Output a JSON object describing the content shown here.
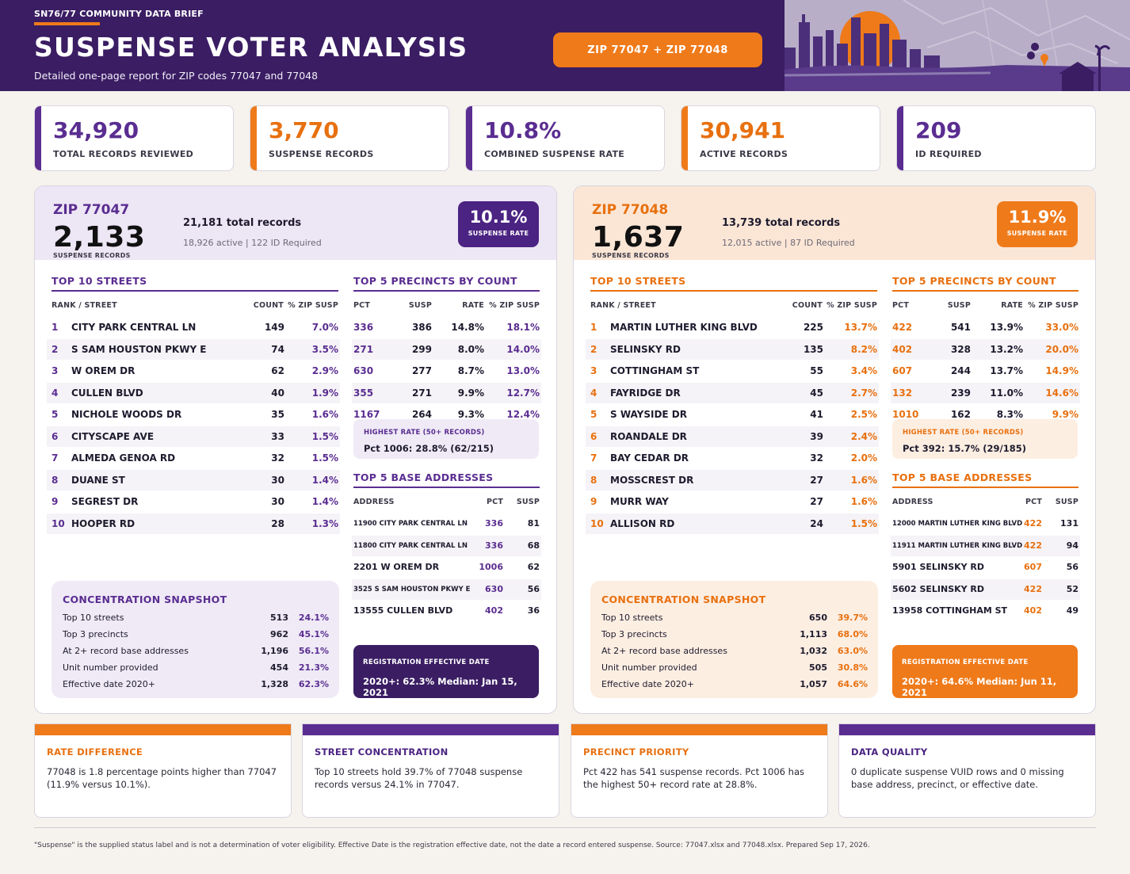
{
  "header": {
    "eyebrow": "SN76/77 COMMUNITY DATA BRIEF",
    "title": "SUSPENSE VOTER ANALYSIS",
    "subtitle": "Detailed one-page report for ZIP codes 77047 and 77048",
    "zip_pill": "ZIP 77047 + ZIP 77048",
    "illustration_icons": [
      "city-skyline-icon",
      "sun-icon",
      "map-pin-icon"
    ]
  },
  "colors": {
    "purple": "#3a1d63",
    "purple_accent": "#5a2d91",
    "orange": "#ef7a1a",
    "purple_tint": "#ede6f5",
    "orange_tint": "#fbe6d6"
  },
  "kpis": [
    {
      "value": "34,920",
      "label": "TOTAL RECORDS REVIEWED",
      "accent": "purple"
    },
    {
      "value": "3,770",
      "label": "SUSPENSE RECORDS",
      "accent": "orange"
    },
    {
      "value": "10.8%",
      "label": "COMBINED SUSPENSE RATE",
      "accent": "purple"
    },
    {
      "value": "30,941",
      "label": "ACTIVE RECORDS",
      "accent": "orange"
    },
    {
      "value": "209",
      "label": "ID REQUIRED",
      "accent": "purple"
    }
  ],
  "zips": [
    {
      "title": "ZIP 77047",
      "suspense": "2,133",
      "suspense_label": "SUSPENSE RECORDS",
      "total": "21,181 total records",
      "sub": "18,926 active | 122 ID Required",
      "rate": "10.1%",
      "rate_label": "SUSPENSE RATE",
      "streets_title": "TOP 10 STREETS",
      "streets_head": {
        "rank": "RANK / STREET",
        "count": "COUNT",
        "pct": "% ZIP SUSP"
      },
      "streets": [
        {
          "rank": "1",
          "name": "CITY PARK CENTRAL LN",
          "count": "149",
          "pct": "7.0%"
        },
        {
          "rank": "2",
          "name": "S SAM HOUSTON PKWY E",
          "count": "74",
          "pct": "3.5%"
        },
        {
          "rank": "3",
          "name": "W OREM DR",
          "count": "62",
          "pct": "2.9%"
        },
        {
          "rank": "4",
          "name": "CULLEN BLVD",
          "count": "40",
          "pct": "1.9%"
        },
        {
          "rank": "5",
          "name": "NICHOLE WOODS DR",
          "count": "35",
          "pct": "1.6%"
        },
        {
          "rank": "6",
          "name": "CITYSCAPE AVE",
          "count": "33",
          "pct": "1.5%"
        },
        {
          "rank": "7",
          "name": "ALMEDA GENOA RD",
          "count": "32",
          "pct": "1.5%"
        },
        {
          "rank": "8",
          "name": "DUANE ST",
          "count": "30",
          "pct": "1.4%"
        },
        {
          "rank": "9",
          "name": "SEGREST DR",
          "count": "30",
          "pct": "1.4%"
        },
        {
          "rank": "10",
          "name": "HOOPER RD",
          "count": "28",
          "pct": "1.3%"
        }
      ],
      "precincts_title": "TOP 5 PRECINCTS BY COUNT",
      "precincts_head": {
        "pct": "PCT",
        "susp": "SUSP",
        "rate": "RATE",
        "share": "% ZIP SUSP"
      },
      "precincts": [
        {
          "pct": "336",
          "susp": "386",
          "rate": "14.8%",
          "share": "18.1%"
        },
        {
          "pct": "271",
          "susp": "299",
          "rate": "8.0%",
          "share": "14.0%"
        },
        {
          "pct": "630",
          "susp": "277",
          "rate": "8.7%",
          "share": "13.0%"
        },
        {
          "pct": "355",
          "susp": "271",
          "rate": "9.9%",
          "share": "12.7%"
        },
        {
          "pct": "1167",
          "susp": "264",
          "rate": "9.3%",
          "share": "12.4%"
        }
      ],
      "highest_label": "HIGHEST RATE (50+ RECORDS)",
      "highest_value": "Pct 1006: 28.8% (62/215)",
      "bases_title": "TOP 5 BASE ADDRESSES",
      "bases_head": {
        "address": "ADDRESS",
        "pct": "PCT",
        "susp": "SUSP"
      },
      "bases": [
        {
          "address": "11900 CITY PARK CENTRAL LN",
          "pct": "336",
          "susp": "81",
          "small": true
        },
        {
          "address": "11800 CITY PARK CENTRAL LN",
          "pct": "336",
          "susp": "68",
          "small": true
        },
        {
          "address": "2201 W OREM DR",
          "pct": "1006",
          "susp": "62",
          "small": false
        },
        {
          "address": "3525 S SAM HOUSTON PKWY E",
          "pct": "630",
          "susp": "56",
          "small": true
        },
        {
          "address": "13555 CULLEN BLVD",
          "pct": "402",
          "susp": "36",
          "small": false
        }
      ],
      "snapshot_title": "CONCENTRATION SNAPSHOT",
      "snapshot": [
        {
          "label": "Top 10 streets",
          "count": "513",
          "pct": "24.1%"
        },
        {
          "label": "Top 3 precincts",
          "count": "962",
          "pct": "45.1%"
        },
        {
          "label": "At 2+ record base addresses",
          "count": "1,196",
          "pct": "56.1%"
        },
        {
          "label": "Unit number provided",
          "count": "454",
          "pct": "21.3%"
        },
        {
          "label": "Effective date 2020+",
          "count": "1,328",
          "pct": "62.3%"
        }
      ],
      "reg_label": "REGISTRATION EFFECTIVE DATE",
      "reg_value": "2020+: 62.3% Median: Jan 15, 2021"
    },
    {
      "title": "ZIP 77048",
      "suspense": "1,637",
      "suspense_label": "SUSPENSE RECORDS",
      "total": "13,739 total records",
      "sub": "12,015 active | 87 ID Required",
      "rate": "11.9%",
      "rate_label": "SUSPENSE RATE",
      "streets_title": "TOP 10 STREETS",
      "streets_head": {
        "rank": "RANK / STREET",
        "count": "COUNT",
        "pct": "% ZIP SUSP"
      },
      "streets": [
        {
          "rank": "1",
          "name": "MARTIN LUTHER KING BLVD",
          "count": "225",
          "pct": "13.7%"
        },
        {
          "rank": "2",
          "name": "SELINSKY RD",
          "count": "135",
          "pct": "8.2%"
        },
        {
          "rank": "3",
          "name": "COTTINGHAM ST",
          "count": "55",
          "pct": "3.4%"
        },
        {
          "rank": "4",
          "name": "FAYRIDGE DR",
          "count": "45",
          "pct": "2.7%"
        },
        {
          "rank": "5",
          "name": "S WAYSIDE DR",
          "count": "41",
          "pct": "2.5%"
        },
        {
          "rank": "6",
          "name": "ROANDALE DR",
          "count": "39",
          "pct": "2.4%"
        },
        {
          "rank": "7",
          "name": "BAY CEDAR DR",
          "count": "32",
          "pct": "2.0%"
        },
        {
          "rank": "8",
          "name": "MOSSCREST DR",
          "count": "27",
          "pct": "1.6%"
        },
        {
          "rank": "9",
          "name": "MURR WAY",
          "count": "27",
          "pct": "1.6%"
        },
        {
          "rank": "10",
          "name": "ALLISON RD",
          "count": "24",
          "pct": "1.5%"
        }
      ],
      "precincts_title": "TOP 5 PRECINCTS BY COUNT",
      "precincts_head": {
        "pct": "PCT",
        "susp": "SUSP",
        "rate": "RATE",
        "share": "% ZIP SUSP"
      },
      "precincts": [
        {
          "pct": "422",
          "susp": "541",
          "rate": "13.9%",
          "share": "33.0%"
        },
        {
          "pct": "402",
          "susp": "328",
          "rate": "13.2%",
          "share": "20.0%"
        },
        {
          "pct": "607",
          "susp": "244",
          "rate": "13.7%",
          "share": "14.9%"
        },
        {
          "pct": "132",
          "susp": "239",
          "rate": "11.0%",
          "share": "14.6%"
        },
        {
          "pct": "1010",
          "susp": "162",
          "rate": "8.3%",
          "share": "9.9%"
        }
      ],
      "highest_label": "HIGHEST RATE (50+ RECORDS)",
      "highest_value": "Pct 392: 15.7% (29/185)",
      "bases_title": "TOP 5 BASE ADDRESSES",
      "bases_head": {
        "address": "ADDRESS",
        "pct": "PCT",
        "susp": "SUSP"
      },
      "bases": [
        {
          "address": "12000 MARTIN LUTHER KING BLVD",
          "pct": "422",
          "susp": "131",
          "small": true
        },
        {
          "address": "11911 MARTIN LUTHER KING BLVD",
          "pct": "422",
          "susp": "94",
          "small": true
        },
        {
          "address": "5901 SELINSKY RD",
          "pct": "607",
          "susp": "56",
          "small": false
        },
        {
          "address": "5602 SELINSKY RD",
          "pct": "422",
          "susp": "52",
          "small": false
        },
        {
          "address": "13958 COTTINGHAM ST",
          "pct": "402",
          "susp": "49",
          "small": false
        }
      ],
      "snapshot_title": "CONCENTRATION SNAPSHOT",
      "snapshot": [
        {
          "label": "Top 10 streets",
          "count": "650",
          "pct": "39.7%"
        },
        {
          "label": "Top 3 precincts",
          "count": "1,113",
          "pct": "68.0%"
        },
        {
          "label": "At 2+ record base addresses",
          "count": "1,032",
          "pct": "63.0%"
        },
        {
          "label": "Unit number provided",
          "count": "505",
          "pct": "30.8%"
        },
        {
          "label": "Effective date 2020+",
          "count": "1,057",
          "pct": "64.6%"
        }
      ],
      "reg_label": "REGISTRATION EFFECTIVE DATE",
      "reg_value": "2020+: 64.6% Median: Jun 11, 2021"
    }
  ],
  "notes": [
    {
      "title": "RATE DIFFERENCE",
      "text": "77048 is 1.8 percentage points higher than 77047 (11.9% versus 10.1%).",
      "accent": "orange"
    },
    {
      "title": "STREET CONCENTRATION",
      "text": "Top 10 streets hold 39.7% of 77048 suspense records versus 24.1% in 77047.",
      "accent": "purple"
    },
    {
      "title": "PRECINCT PRIORITY",
      "text": "Pct 422 has 541 suspense records. Pct 1006 has the highest 50+ record rate at 28.8%.",
      "accent": "orange"
    },
    {
      "title": "DATA QUALITY",
      "text": "0 duplicate suspense VUID rows and 0 missing base address, precinct, or effective date.",
      "accent": "purple"
    }
  ],
  "footer": "\"Suspense\" is the supplied status label and is not a determination of voter eligibility. Effective Date is the registration effective date, not the date a record entered suspense. Source: 77047.xlsx and 77048.xlsx. Prepared Sep 17, 2026."
}
